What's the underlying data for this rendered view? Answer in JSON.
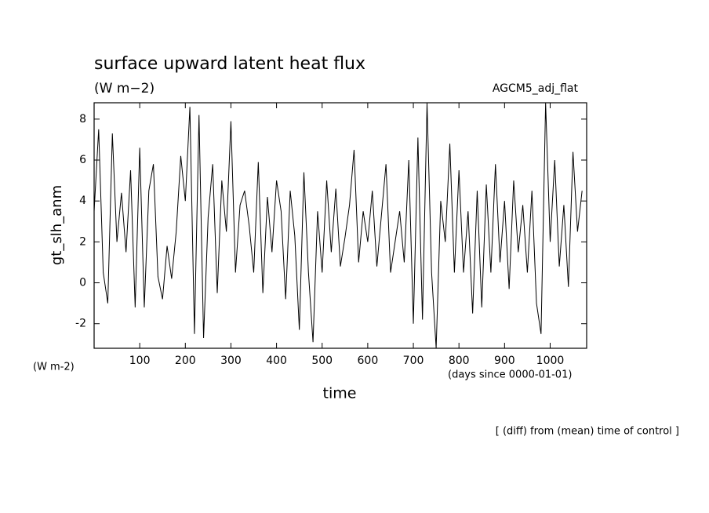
{
  "chart_data": {
    "type": "line",
    "title": "surface upward latent heat flux",
    "subtitle": "(W m−2)",
    "annotation": "AGCM5_adj_flat",
    "y_label": "gt_slh_anm",
    "y_unit": "(W m-2)",
    "x_label": "time",
    "x_unit": "(days since 0000-01-01)",
    "footnote": "[ (diff) from (mean) time of control ]",
    "color": "#000000",
    "x": [
      0,
      10,
      20,
      30,
      40,
      50,
      60,
      70,
      80,
      90,
      100,
      110,
      120,
      130,
      140,
      150,
      160,
      170,
      180,
      190,
      200,
      210,
      220,
      230,
      240,
      250,
      260,
      270,
      280,
      290,
      300,
      310,
      320,
      330,
      340,
      350,
      360,
      370,
      380,
      390,
      400,
      410,
      420,
      430,
      440,
      450,
      460,
      470,
      480,
      490,
      500,
      510,
      520,
      530,
      540,
      550,
      560,
      570,
      580,
      590,
      600,
      610,
      620,
      630,
      640,
      650,
      660,
      670,
      680,
      690,
      700,
      710,
      720,
      730,
      740,
      750,
      760,
      770,
      780,
      790,
      800,
      810,
      820,
      830,
      840,
      850,
      860,
      870,
      880,
      890,
      900,
      910,
      920,
      930,
      940,
      950,
      960,
      970,
      980,
      990,
      1000,
      1010,
      1020,
      1030,
      1040,
      1050,
      1060,
      1070
    ],
    "values": [
      3.5,
      7.5,
      0.5,
      -1,
      7.3,
      2,
      4.4,
      1.5,
      5.5,
      -1.2,
      6.6,
      -1.2,
      4.5,
      5.8,
      0.3,
      -0.8,
      1.8,
      0.2,
      2.5,
      6.2,
      4,
      8.6,
      -2.5,
      8.2,
      -2.7,
      3.2,
      5.8,
      -0.5,
      5,
      2.5,
      7.9,
      0.5,
      3.8,
      4.5,
      2.8,
      0.5,
      5.9,
      -0.5,
      4.2,
      1.5,
      5,
      3.5,
      -0.8,
      4.5,
      2.3,
      -2.3,
      5.4,
      0.5,
      -2.9,
      3.5,
      0.5,
      5,
      1.5,
      4.6,
      0.8,
      2.2,
      3.8,
      6.5,
      1,
      3.5,
      2,
      4.5,
      0.8,
      3.3,
      5.8,
      0.5,
      2,
      3.5,
      1,
      6,
      -2,
      7.1,
      -1.8,
      8.8,
      0.5,
      -3.2,
      4,
      2,
      6.8,
      0.5,
      5.5,
      0.5,
      3.5,
      -1.5,
      4.5,
      -1.2,
      4.8,
      0.5,
      5.8,
      1,
      4,
      -0.3,
      5,
      1.5,
      3.8,
      0.5,
      4.5,
      -1,
      -2.5,
      8.8,
      2,
      6,
      0.8,
      3.8,
      -0.2,
      6.4,
      2.5,
      4.5
    ],
    "xlim": [
      0,
      1080
    ],
    "xticks": [
      100,
      200,
      300,
      400,
      500,
      600,
      700,
      800,
      900,
      1000
    ],
    "ylim": [
      -3.2,
      8.8
    ],
    "yticks": [
      -2,
      0,
      2,
      4,
      6,
      8
    ]
  }
}
